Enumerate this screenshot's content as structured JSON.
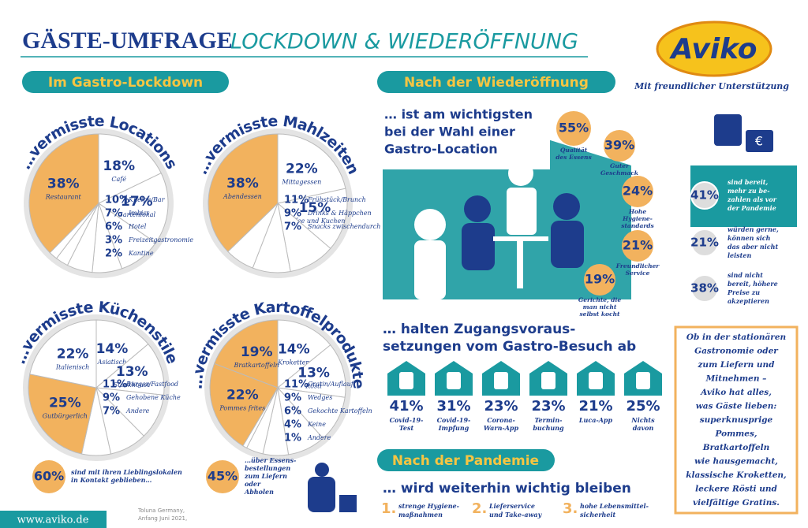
{
  "header": {
    "title": "GÄSTE-UMFRAGE",
    "subtitle": "LOCKDOWN & WIEDERÖFFNUNG",
    "logo": "Aviko",
    "support": "Mit freundlicher Unterstützung"
  },
  "lockdown": {
    "badge": "Im Gastro-Lockdown",
    "pies": [
      {
        "title": "…vermisste Locations",
        "segments": [
          {
            "value": 18,
            "label": "18%",
            "name": "Café",
            "color": "#ffffff"
          },
          {
            "value": 17,
            "label": "17%",
            "name": "Gartenlokal",
            "color": "#ffffff"
          },
          {
            "value": 10,
            "label": "10%",
            "name": "Kneipe/Bar",
            "color": "#ffffff"
          },
          {
            "value": 7,
            "label": "7%",
            "name": "Imbiss",
            "color": "#ffffff"
          },
          {
            "value": 6,
            "label": "6%",
            "name": "Hotel",
            "color": "#ffffff"
          },
          {
            "value": 3,
            "label": "3%",
            "name": "Freizeitgastronomie",
            "color": "#ffffff"
          },
          {
            "value": 2,
            "label": "2%",
            "name": "Kantine",
            "color": "#ffffff"
          },
          {
            "value": 38,
            "label": "38%",
            "name": "Restaurant",
            "color": "#f2b25e"
          }
        ]
      },
      {
        "title": "…vermisste Mahlzeiten",
        "segments": [
          {
            "value": 22,
            "label": "22%",
            "name": "Mittagessen",
            "color": "#ffffff"
          },
          {
            "value": 15,
            "label": "15%",
            "name": "Kaffee und Kuchen",
            "color": "#ffffff"
          },
          {
            "value": 11,
            "label": "11%",
            "name": "Frühstück/Brunch",
            "color": "#ffffff"
          },
          {
            "value": 9,
            "label": "9%",
            "name": "Drinks & Häppchen",
            "color": "#ffffff"
          },
          {
            "value": 7,
            "label": "7%",
            "name": "Snacks zwischendurch",
            "color": "#ffffff"
          },
          {
            "value": 38,
            "label": "38%",
            "name": "Abendessen",
            "color": "#f2b25e"
          }
        ]
      },
      {
        "title": "…vermisste Küchenstile",
        "segments": [
          {
            "value": 14,
            "label": "14%",
            "name": "Asiatisch",
            "color": "#ffffff"
          },
          {
            "value": 13,
            "label": "13%",
            "name": "Steakhouse",
            "color": "#ffffff"
          },
          {
            "value": 11,
            "label": "11%",
            "name": "Burger/Fastfood",
            "color": "#ffffff"
          },
          {
            "value": 9,
            "label": "9%",
            "name": "Gehobene Küche",
            "color": "#ffffff"
          },
          {
            "value": 7,
            "label": "7%",
            "name": "Andere",
            "color": "#ffffff"
          },
          {
            "value": 25,
            "label": "25%",
            "name": "Gutbürgerlich",
            "color": "#f2b25e"
          },
          {
            "value": 22,
            "label": "22%",
            "name": "Italienisch",
            "color": "#ffffff"
          }
        ]
      },
      {
        "title": "…vermisste Kartoffelprodukte",
        "segments": [
          {
            "value": 14,
            "label": "14%",
            "name": "Kroketten",
            "color": "#ffffff"
          },
          {
            "value": 13,
            "label": "13%",
            "name": "Rösti",
            "color": "#ffffff"
          },
          {
            "value": 11,
            "label": "11%",
            "name": "Gratin/Auflauf",
            "color": "#ffffff"
          },
          {
            "value": 9,
            "label": "9%",
            "name": "Wedges",
            "color": "#ffffff"
          },
          {
            "value": 6,
            "label": "6%",
            "name": "Gekochte Kartoffeln",
            "color": "#ffffff"
          },
          {
            "value": 4,
            "label": "4%",
            "name": "Keine",
            "color": "#ffffff"
          },
          {
            "value": 1,
            "label": "1%",
            "name": "Andere",
            "color": "#ffffff"
          },
          {
            "value": 22,
            "label": "22%",
            "name": "Pommes frites",
            "color": "#f2b25e"
          },
          {
            "value": 19,
            "label": "19%",
            "name": "Bratkartoffeln",
            "color": "#f2b25e"
          }
        ]
      }
    ],
    "stats": [
      {
        "label": "60%",
        "text": [
          "sind mit ihren Lieblingslokalen",
          "in Kontakt geblieben…"
        ]
      },
      {
        "label": "45%",
        "text": [
          "…über Essens-",
          "bestellungen",
          "zum Liefern",
          "oder",
          "Abholen"
        ]
      }
    ],
    "source": [
      "Toluna Germany,",
      "Anfang Juni 2021,"
    ],
    "url": "www.aviko.de"
  },
  "reopening": {
    "badge": "Nach der Wiederöffnung",
    "headline": [
      "… ist am wichtigsten",
      "bei der Wahl einer",
      "Gastro-Location"
    ],
    "factors": [
      {
        "label": "55%",
        "text": [
          "Qualität",
          "des Essens"
        ]
      },
      {
        "label": "39%",
        "text": [
          "Guter",
          "Geschmack"
        ]
      },
      {
        "label": "24%",
        "text": [
          "Hohe",
          "Hygiene-",
          "standards"
        ]
      },
      {
        "label": "21%",
        "text": [
          "Freundlicher",
          "Service"
        ]
      },
      {
        "label": "19%",
        "text": [
          "Gerichte, die",
          "man nicht",
          "selbst kocht"
        ]
      }
    ],
    "requirements_title": [
      "… halten Zugangsvoraus-",
      "setzungen vom Gastro-Besuch ab"
    ],
    "requirements": [
      {
        "label": "41%",
        "text": [
          "Covid-19-",
          "Test"
        ]
      },
      {
        "label": "31%",
        "text": [
          "Covid-19-",
          "Impfung"
        ]
      },
      {
        "label": "23%",
        "text": [
          "Corona-",
          "Warn-App"
        ]
      },
      {
        "label": "23%",
        "text": [
          "Termin-",
          "buchung"
        ]
      },
      {
        "label": "21%",
        "text": [
          "Luca-App"
        ]
      },
      {
        "label": "25%",
        "text": [
          "Nichts",
          "davon"
        ]
      }
    ]
  },
  "prices": [
    {
      "label": "41%",
      "text": [
        "sind bereit,",
        "mehr zu be-",
        "zahlen als vor",
        "der Pandemie"
      ]
    },
    {
      "label": "21%",
      "text": [
        "würden gerne,",
        "können sich",
        "das aber nicht",
        "leisten"
      ]
    },
    {
      "label": "38%",
      "text": [
        "sind nicht",
        "bereit, höhere",
        "Preise zu",
        "akzeptieren"
      ]
    }
  ],
  "pandemic": {
    "badge": "Nach der Pandemie",
    "headline": "… wird weiterhin wichtig bleiben",
    "items": [
      {
        "num": "1.",
        "text": [
          "strenge Hygiene-",
          "maßnahmen"
        ]
      },
      {
        "num": "2.",
        "text": [
          "Lieferservice",
          "und Take-away"
        ]
      },
      {
        "num": "3.",
        "text": [
          "hohe Lebensmittel-",
          "sicherheit"
        ]
      }
    ]
  },
  "promo": [
    "Ob in der stationären",
    "Gastronomie oder",
    "zum Liefern und",
    "Mitnehmen –",
    "Aviko hat alles,",
    "was Gäste lieben:",
    "superknusprige",
    "Pommes,",
    "Bratkartoffeln",
    "wie hausgemacht,",
    "klassische Kroketten,",
    "leckere Rösti und",
    "vielfältige Gratins."
  ]
}
